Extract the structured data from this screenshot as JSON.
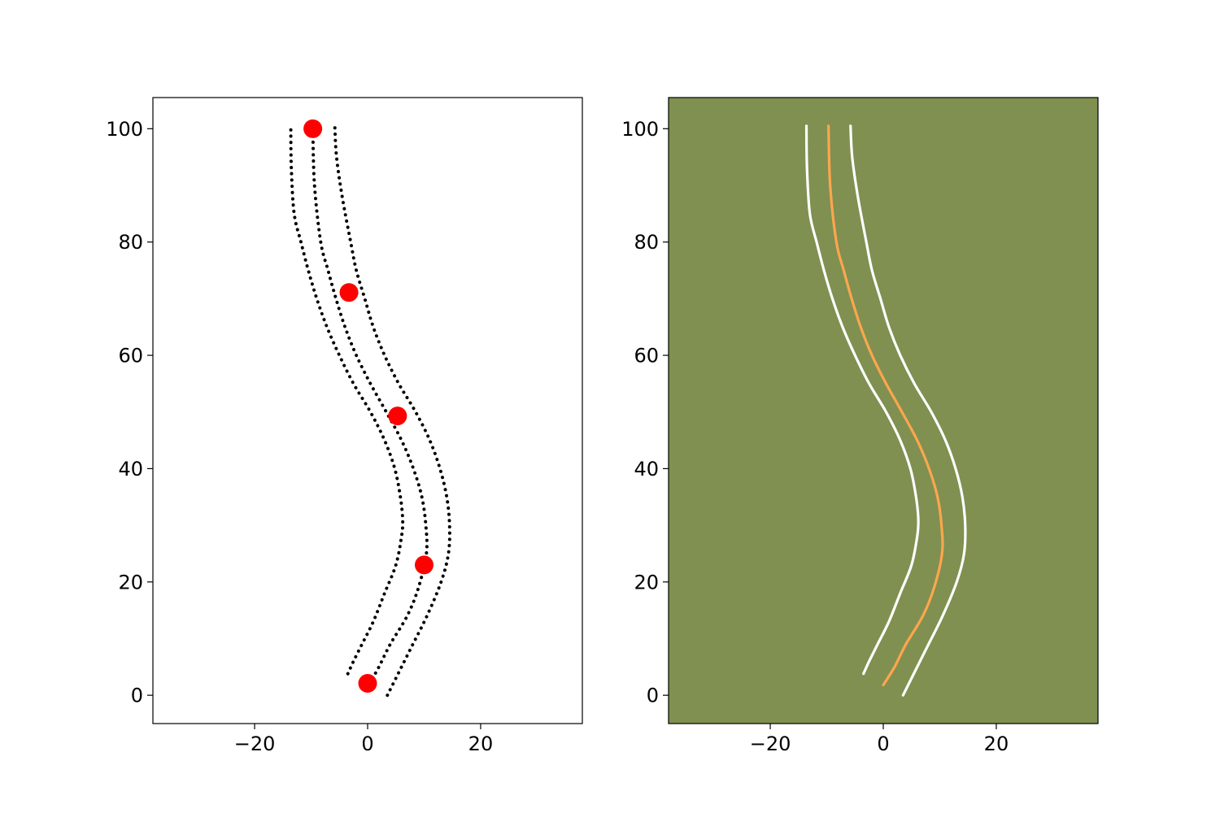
{
  "chart_data": [
    {
      "type": "scatter",
      "name": "left-panel",
      "background": "#ffffff",
      "xlim": [
        -38,
        38
      ],
      "ylim": [
        -5,
        105.5
      ],
      "xticks": [
        -20,
        0,
        20
      ],
      "yticks": [
        0,
        20,
        40,
        60,
        80,
        100
      ],
      "xtick_labels": [
        "−20",
        "0",
        "20"
      ],
      "ytick_labels": [
        "0",
        "20",
        "40",
        "60",
        "80",
        "100"
      ],
      "grid": false,
      "series": [
        {
          "style": "dotted-line",
          "color": "#000000",
          "x": [
            -3.5,
            -2.5,
            -1.0,
            1.0,
            3.0,
            5.0,
            6.0,
            6.2,
            5.8,
            4.8,
            3.0,
            0.5,
            -2.5,
            -5.0,
            -7.2,
            -9.0,
            -10.5,
            -11.8,
            -13.0,
            -13.5,
            -13.6
          ],
          "y": [
            3.8,
            6,
            9,
            13,
            18,
            23,
            28,
            31,
            35,
            40,
            45,
            50,
            55,
            60,
            65,
            70,
            75,
            80,
            85,
            93,
            100.5
          ]
        },
        {
          "style": "dotted-line",
          "color": "#000000",
          "x": [
            0.3,
            2.0,
            4.0,
            7.0,
            9.0,
            10.4,
            10.3,
            9.6,
            8.1,
            6.0,
            3.3,
            0.5,
            -2.0,
            -4.0,
            -5.6,
            -7.0,
            -8.3,
            -9.4,
            -9.7
          ],
          "y": [
            2,
            5,
            9,
            14,
            19,
            25,
            30,
            35,
            40,
            45,
            50,
            55,
            60,
            65,
            70,
            75,
            80,
            90,
            100
          ]
        },
        {
          "style": "dotted-line",
          "color": "#000000",
          "x": [
            3.5,
            5.0,
            7.5,
            10.5,
            13.0,
            14.3,
            14.5,
            14.0,
            12.8,
            11.0,
            8.5,
            5.5,
            3.0,
            1.0,
            -0.5,
            -2.0,
            -3.0,
            -4.5,
            -5.5,
            -5.8
          ],
          "y": [
            0,
            3,
            8,
            14,
            20,
            25,
            30,
            35,
            40,
            45,
            50,
            55,
            60,
            65,
            70,
            75,
            80,
            88,
            95,
            100.3
          ]
        },
        {
          "style": "markers",
          "color": "#ff0000",
          "x": [
            0.0,
            10.0,
            5.3,
            -3.3,
            -9.7
          ],
          "y": [
            2.1,
            23.0,
            49.3,
            71.1,
            100.0
          ]
        }
      ]
    },
    {
      "type": "line",
      "name": "right-panel",
      "background": "#7f9051",
      "xlim": [
        -38,
        38
      ],
      "ylim": [
        -5,
        105.5
      ],
      "xticks": [
        -20,
        0,
        20
      ],
      "yticks": [
        0,
        20,
        40,
        60,
        80,
        100
      ],
      "xtick_labels": [
        "−20",
        "0",
        "20"
      ],
      "ytick_labels": [
        "0",
        "20",
        "40",
        "60",
        "80",
        "100"
      ],
      "grid": false,
      "series": [
        {
          "style": "solid-line",
          "color": "#ffffff",
          "x": [
            -3.5,
            -2.5,
            -1.0,
            1.0,
            3.0,
            5.0,
            6.0,
            6.2,
            5.8,
            4.8,
            3.0,
            0.5,
            -2.5,
            -5.0,
            -7.2,
            -9.0,
            -10.5,
            -11.8,
            -13.0,
            -13.5,
            -13.6
          ],
          "y": [
            3.8,
            6,
            9,
            13,
            18,
            23,
            28,
            31,
            35,
            40,
            45,
            50,
            55,
            60,
            65,
            70,
            75,
            80,
            85,
            93,
            100.5
          ]
        },
        {
          "style": "solid-line",
          "color": "#ffa64d",
          "x": [
            0.0,
            2.0,
            4.0,
            7.0,
            9.0,
            10.4,
            10.3,
            9.6,
            8.1,
            6.0,
            3.3,
            0.5,
            -2.0,
            -4.0,
            -5.6,
            -7.0,
            -8.3,
            -9.4,
            -9.7
          ],
          "y": [
            1.8,
            5,
            9,
            14,
            19,
            25,
            30,
            35,
            40,
            45,
            50,
            55,
            60,
            65,
            70,
            75,
            80,
            90,
            100.5
          ]
        },
        {
          "style": "solid-line",
          "color": "#ffffff",
          "x": [
            3.5,
            5.0,
            7.5,
            10.5,
            13.0,
            14.3,
            14.5,
            14.0,
            12.8,
            11.0,
            8.5,
            5.5,
            3.0,
            1.0,
            -0.5,
            -2.0,
            -3.0,
            -4.5,
            -5.5,
            -5.8
          ],
          "y": [
            0,
            3,
            8,
            14,
            20,
            25,
            30,
            35,
            40,
            45,
            50,
            55,
            60,
            65,
            70,
            75,
            80,
            88,
            95,
            100.5
          ]
        }
      ]
    }
  ]
}
